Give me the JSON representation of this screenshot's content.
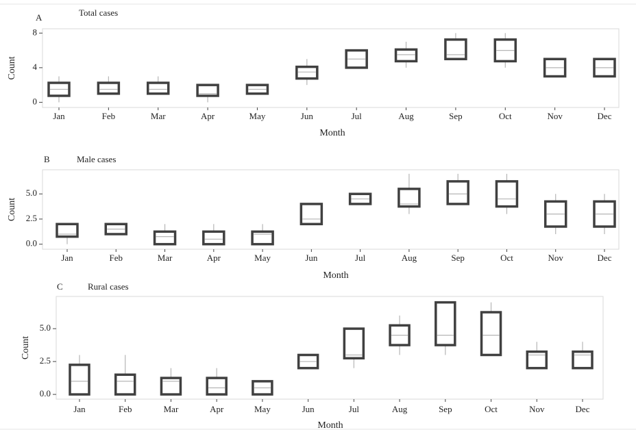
{
  "chart_data": [
    {
      "type": "box",
      "label": "A",
      "title": "Total cases",
      "xlabel": "Month",
      "ylabel": "Count",
      "categories": [
        "Jan",
        "Feb",
        "Mar",
        "Apr",
        "May",
        "Jun",
        "Jul",
        "Aug",
        "Sep",
        "Oct",
        "Nov",
        "Dec"
      ],
      "whisker_low": [
        0,
        1,
        1,
        0,
        1,
        2,
        4,
        4,
        5,
        4,
        3,
        3
      ],
      "q1": [
        0.75,
        1,
        1,
        0.75,
        1,
        2.75,
        4,
        4.75,
        5,
        4.75,
        3,
        3
      ],
      "median": [
        1.5,
        1.5,
        1.5,
        1,
        1.5,
        3.5,
        5,
        5.5,
        5.5,
        6,
        4,
        4
      ],
      "q3": [
        2.25,
        2.25,
        2.25,
        2,
        2,
        4.1,
        6,
        6.1,
        7.25,
        7.25,
        5,
        5
      ],
      "whisker_high": [
        3,
        3,
        3,
        2,
        2,
        5,
        6,
        7,
        8,
        8,
        5,
        5
      ],
      "ylim": [
        -0.6,
        8.5
      ],
      "yticks": [
        0,
        4,
        8
      ],
      "color": "#404040"
    },
    {
      "type": "box",
      "label": "B",
      "title": "Male cases",
      "xlabel": "Month",
      "ylabel": "Count",
      "categories": [
        "Jan",
        "Feb",
        "Mar",
        "Apr",
        "May",
        "Jun",
        "Jul",
        "Aug",
        "Sep",
        "Oct",
        "Nov",
        "Dec"
      ],
      "whisker_low": [
        0,
        1,
        0,
        0,
        0,
        2,
        4,
        3,
        4,
        3,
        1,
        1
      ],
      "q1": [
        0.75,
        1,
        0,
        0,
        0,
        2,
        4,
        3.75,
        4,
        3.75,
        1.75,
        1.75
      ],
      "median": [
        1,
        1.5,
        0.75,
        0.5,
        1,
        2.5,
        4.5,
        4,
        5,
        4.5,
        3,
        3
      ],
      "q3": [
        2,
        2,
        1.25,
        1.25,
        1.25,
        4,
        5,
        5.5,
        6.25,
        6.25,
        4.25,
        4.25
      ],
      "whisker_high": [
        2,
        2,
        2,
        2,
        2,
        4,
        5,
        7,
        7,
        7,
        5,
        5
      ],
      "ylim": [
        -0.5,
        7.4
      ],
      "yticks": [
        {
          "value": 0,
          "label": "0.0"
        },
        2.5,
        {
          "value": 5,
          "label": "5.0"
        }
      ],
      "color": "#404040"
    },
    {
      "type": "box",
      "label": "C",
      "title": "Rural cases",
      "xlabel": "Month",
      "ylabel": "Count",
      "categories": [
        "Jan",
        "Feb",
        "Mar",
        "Apr",
        "May",
        "Jun",
        "Jul",
        "Aug",
        "Sep",
        "Oct",
        "Nov",
        "Dec"
      ],
      "whisker_low": [
        0,
        0,
        0,
        0,
        0,
        2,
        2,
        3,
        3,
        3,
        2,
        2
      ],
      "q1": [
        0,
        0,
        0,
        0,
        0,
        2,
        2.75,
        3.75,
        3.75,
        3,
        2,
        2
      ],
      "median": [
        1,
        1,
        1,
        0.5,
        0.5,
        2.5,
        3,
        4.5,
        4.5,
        4.5,
        3,
        3
      ],
      "q3": [
        2.25,
        1.5,
        1.25,
        1.25,
        1,
        3,
        5,
        5.25,
        7,
        6.25,
        3.25,
        3.25
      ],
      "whisker_high": [
        3,
        3,
        2,
        2,
        1,
        3,
        5,
        6,
        7,
        7,
        4,
        4
      ],
      "ylim": [
        -0.36,
        7.45
      ],
      "yticks": [
        {
          "value": 0,
          "label": "0.0"
        },
        2.5,
        {
          "value": 5,
          "label": "5.0"
        }
      ],
      "color": "#404040"
    }
  ]
}
